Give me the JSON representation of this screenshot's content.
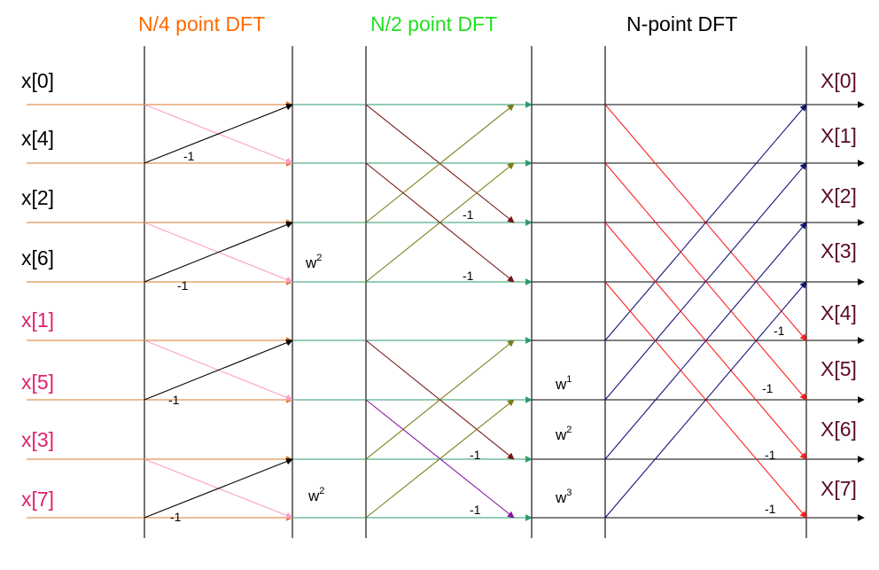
{
  "headers": {
    "stage1": "N/4 point DFT",
    "stage2": "N/2 point DFT",
    "stage3": "N-point DFT"
  },
  "colors": {
    "stage1": "#ff6a00",
    "stage2": "#22e022",
    "stage3": "#000000",
    "inputs_even": "#000000",
    "inputs_odd": "#e0206f",
    "outputs": "#5a0a2a",
    "line_stage1": "#d97a2b",
    "line_stage2": "#2e9a6e",
    "line_stage3": "#000000",
    "pink": "#ff9ec8",
    "olive": "#7c7c14",
    "maroon": "#7a1414",
    "purple": "#8a14a0",
    "navy": "#141478",
    "red": "#ff2020"
  },
  "inputs": [
    "x[0]",
    "x[4]",
    "x[2]",
    "x[6]",
    "x[1]",
    "x[5]",
    "x[3]",
    "x[7]"
  ],
  "outputs": [
    "X[0]",
    "X[1]",
    "X[2]",
    "X[3]",
    "X[4]",
    "X[5]",
    "X[6]",
    "X[7]"
  ],
  "minus_one": "-1",
  "twiddles": {
    "base": "w",
    "stage2_a": "2",
    "stage2_b": "2",
    "stage3_1": "1",
    "stage3_2": "2",
    "stage3_3": "3"
  }
}
